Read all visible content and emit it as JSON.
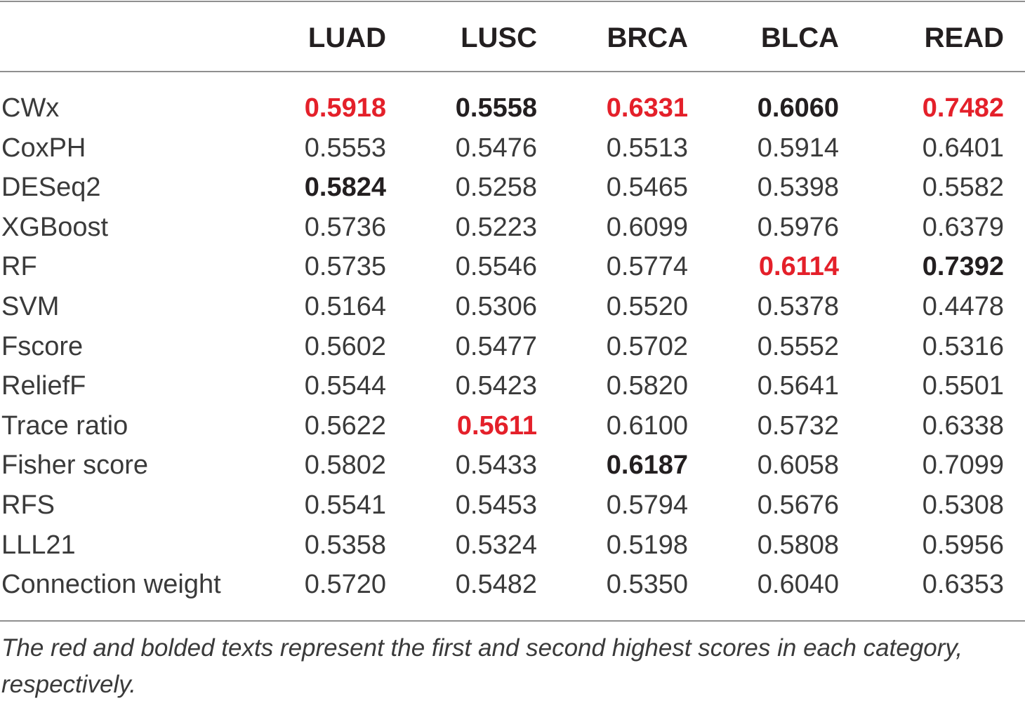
{
  "table": {
    "columns": [
      "LUAD",
      "LUSC",
      "BRCA",
      "BLCA",
      "READ"
    ],
    "rows": [
      {
        "name": "CWx",
        "values": [
          "0.5918",
          "0.5558",
          "0.6331",
          "0.6060",
          "0.7482"
        ],
        "rank": [
          "first",
          "second",
          "first",
          "second",
          "first"
        ]
      },
      {
        "name": "CoxPH",
        "values": [
          "0.5553",
          "0.5476",
          "0.5513",
          "0.5914",
          "0.6401"
        ],
        "rank": [
          "",
          "",
          "",
          "",
          ""
        ]
      },
      {
        "name": "DESeq2",
        "values": [
          "0.5824",
          "0.5258",
          "0.5465",
          "0.5398",
          "0.5582"
        ],
        "rank": [
          "second",
          "",
          "",
          "",
          ""
        ]
      },
      {
        "name": "XGBoost",
        "values": [
          "0.5736",
          "0.5223",
          "0.6099",
          "0.5976",
          "0.6379"
        ],
        "rank": [
          "",
          "",
          "",
          "",
          ""
        ]
      },
      {
        "name": "RF",
        "values": [
          "0.5735",
          "0.5546",
          "0.5774",
          "0.6114",
          "0.7392"
        ],
        "rank": [
          "",
          "",
          "",
          "first",
          "second"
        ]
      },
      {
        "name": "SVM",
        "values": [
          "0.5164",
          "0.5306",
          "0.5520",
          "0.5378",
          "0.4478"
        ],
        "rank": [
          "",
          "",
          "",
          "",
          ""
        ]
      },
      {
        "name": "Fscore",
        "values": [
          "0.5602",
          "0.5477",
          "0.5702",
          "0.5552",
          "0.5316"
        ],
        "rank": [
          "",
          "",
          "",
          "",
          ""
        ]
      },
      {
        "name": "ReliefF",
        "values": [
          "0.5544",
          "0.5423",
          "0.5820",
          "0.5641",
          "0.5501"
        ],
        "rank": [
          "",
          "",
          "",
          "",
          ""
        ]
      },
      {
        "name": "Trace ratio",
        "values": [
          "0.5622",
          "0.5611",
          "0.6100",
          "0.5732",
          "0.6338"
        ],
        "rank": [
          "",
          "first",
          "",
          "",
          ""
        ]
      },
      {
        "name": "Fisher score",
        "values": [
          "0.5802",
          "0.5433",
          "0.6187",
          "0.6058",
          "0.7099"
        ],
        "rank": [
          "",
          "",
          "second",
          "",
          ""
        ]
      },
      {
        "name": "RFS",
        "values": [
          "0.5541",
          "0.5453",
          "0.5794",
          "0.5676",
          "0.5308"
        ],
        "rank": [
          "",
          "",
          "",
          "",
          ""
        ]
      },
      {
        "name": "LLL21",
        "values": [
          "0.5358",
          "0.5324",
          "0.5198",
          "0.5808",
          "0.5956"
        ],
        "rank": [
          "",
          "",
          "",
          "",
          ""
        ]
      },
      {
        "name": "Connection weight",
        "values": [
          "0.5720",
          "0.5482",
          "0.5350",
          "0.6040",
          "0.6353"
        ],
        "rank": [
          "",
          "",
          "",
          "",
          ""
        ]
      }
    ]
  },
  "footnote": "The red and bolded texts represent the first and second highest scores in each category, respectively.",
  "colors": {
    "first_highest": "#e4202a",
    "second_highest": "#231f20",
    "text": "#3a3a3a",
    "rule": "#8f8f8f"
  }
}
